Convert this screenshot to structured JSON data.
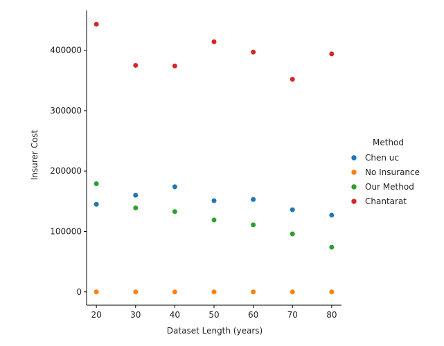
{
  "chart_data": {
    "type": "scatter",
    "xlabel": "Dataset Length (years)",
    "ylabel": "Insurer Cost",
    "x": [
      20,
      30,
      40,
      50,
      60,
      70,
      80
    ],
    "xlim": [
      17.5,
      82.5
    ],
    "ylim": [
      -22000,
      466000
    ],
    "xticks": [
      20,
      30,
      40,
      50,
      60,
      70,
      80
    ],
    "yticks": [
      0,
      100000,
      200000,
      300000,
      400000
    ],
    "grid": false,
    "legend": {
      "title": "Method",
      "placement": "right"
    },
    "series": [
      {
        "name": "Chen uc",
        "color": "#1f77b4",
        "values": [
          145000,
          160000,
          174000,
          151000,
          153000,
          136000,
          127000
        ]
      },
      {
        "name": "No Insurance",
        "color": "#ff7f0e",
        "values": [
          0,
          0,
          0,
          0,
          0,
          0,
          0
        ]
      },
      {
        "name": "Our Method",
        "color": "#2ca02c",
        "values": [
          179000,
          139000,
          133000,
          119000,
          111000,
          96000,
          74000
        ]
      },
      {
        "name": "Chantarat",
        "color": "#d62728",
        "values": [
          443000,
          375000,
          374000,
          414000,
          397000,
          352000,
          394000
        ]
      }
    ]
  }
}
